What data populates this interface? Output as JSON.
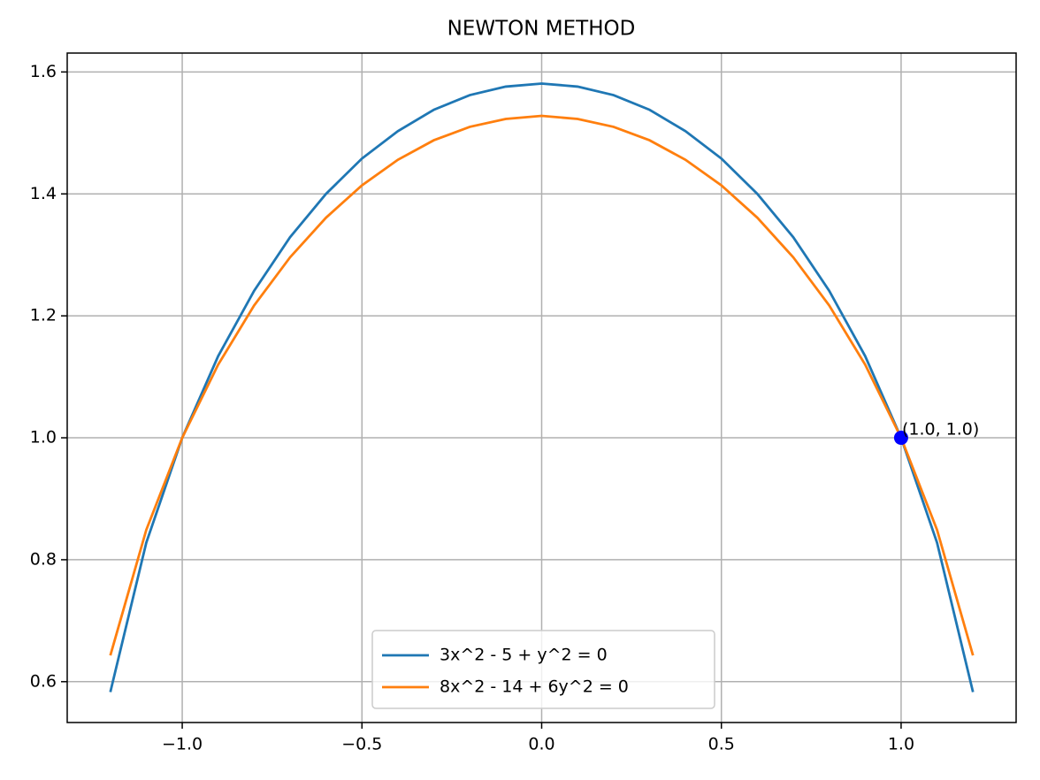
{
  "chart_data": {
    "type": "line",
    "title": "NEWTON METHOD",
    "x": [
      -1.2,
      -1.1,
      -1.0,
      -0.9,
      -0.8,
      -0.7,
      -0.6,
      -0.5,
      -0.4,
      -0.3,
      -0.2,
      -0.1,
      0.0,
      0.1,
      0.2,
      0.3,
      0.4,
      0.5,
      0.6,
      0.7,
      0.8,
      0.9,
      1.0,
      1.1,
      1.2
    ],
    "series": [
      {
        "name": "3x^2 - 5 + y^2 = 0",
        "color": "#1f77b4",
        "values": [
          0.583,
          0.828,
          1.0,
          1.134,
          1.241,
          1.329,
          1.4,
          1.458,
          1.503,
          1.538,
          1.562,
          1.576,
          1.581,
          1.576,
          1.562,
          1.538,
          1.503,
          1.458,
          1.4,
          1.329,
          1.241,
          1.134,
          1.0,
          0.828,
          0.583
        ]
      },
      {
        "name": "8x^2 - 14 + 6y^2 = 0",
        "color": "#ff7f0e",
        "values": [
          0.643,
          0.849,
          1.0,
          1.12,
          1.217,
          1.296,
          1.361,
          1.414,
          1.456,
          1.488,
          1.51,
          1.523,
          1.528,
          1.523,
          1.51,
          1.488,
          1.456,
          1.414,
          1.361,
          1.296,
          1.217,
          1.12,
          1.0,
          0.849,
          0.643
        ]
      }
    ],
    "points": [
      {
        "x": 1.0,
        "y": 1.0,
        "label": "(1.0, 1.0)",
        "color": "#0000ff"
      }
    ],
    "xlim": [
      -1.32,
      1.32
    ],
    "ylim": [
      0.533,
      1.631
    ],
    "xticks": [
      {
        "value": -1.0,
        "label": "−1.0"
      },
      {
        "value": -0.5,
        "label": "−0.5"
      },
      {
        "value": 0.0,
        "label": "0.0"
      },
      {
        "value": 0.5,
        "label": "0.5"
      },
      {
        "value": 1.0,
        "label": "1.0"
      }
    ],
    "yticks": [
      0.6,
      0.8,
      {
        "value": 1.0,
        "label": "1.0"
      },
      1.2,
      1.4,
      1.6
    ],
    "grid": true,
    "legend": "lower center"
  }
}
